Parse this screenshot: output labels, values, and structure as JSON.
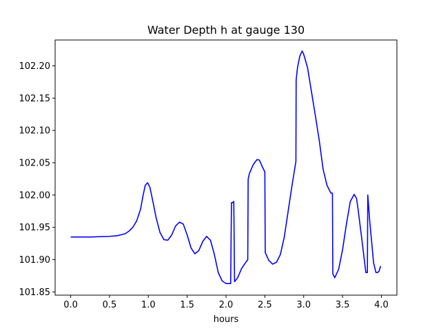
{
  "chart_data": {
    "type": "line",
    "title": "Water Depth h at gauge 130",
    "xlabel": "hours",
    "ylabel": "",
    "xlim": [
      -0.2,
      4.2
    ],
    "ylim": [
      101.845,
      102.24
    ],
    "xticks": [
      0.0,
      0.5,
      1.0,
      1.5,
      2.0,
      2.5,
      3.0,
      3.5,
      4.0
    ],
    "xtick_labels": [
      "0.0",
      "0.5",
      "1.0",
      "1.5",
      "2.0",
      "2.5",
      "3.0",
      "3.5",
      "4.0"
    ],
    "yticks": [
      101.85,
      101.9,
      101.95,
      102.0,
      102.05,
      102.1,
      102.15,
      102.2
    ],
    "ytick_labels": [
      "101.85",
      "101.90",
      "101.95",
      "102.00",
      "102.05",
      "102.10",
      "102.15",
      "102.20"
    ],
    "grid": false,
    "legend": "none",
    "series": [
      {
        "color": "#0000ff",
        "x": [
          0.0,
          0.25,
          0.5,
          0.6,
          0.7,
          0.75,
          0.8,
          0.85,
          0.9,
          0.93,
          0.96,
          0.99,
          1.02,
          1.05,
          1.1,
          1.15,
          1.2,
          1.25,
          1.3,
          1.35,
          1.4,
          1.45,
          1.5,
          1.55,
          1.6,
          1.65,
          1.7,
          1.75,
          1.8,
          1.85,
          1.9,
          1.95,
          2.0,
          2.03,
          2.06,
          2.07,
          2.08,
          2.1,
          2.11,
          2.15,
          2.2,
          2.25,
          2.28,
          2.285,
          2.3,
          2.35,
          2.4,
          2.43,
          2.47,
          2.5,
          2.505,
          2.55,
          2.6,
          2.65,
          2.7,
          2.75,
          2.8,
          2.85,
          2.9,
          2.903,
          2.92,
          2.95,
          2.98,
          3.0,
          3.05,
          3.1,
          3.15,
          3.2,
          3.25,
          3.3,
          3.35,
          3.37,
          3.375,
          3.4,
          3.45,
          3.5,
          3.55,
          3.6,
          3.65,
          3.68,
          3.7,
          3.75,
          3.8,
          3.82,
          3.825,
          3.85,
          3.9,
          3.93,
          3.95,
          3.97,
          3.99
        ],
        "values": [
          101.935,
          101.935,
          101.936,
          101.937,
          101.94,
          101.944,
          101.95,
          101.96,
          101.978,
          101.998,
          102.015,
          102.019,
          102.012,
          101.995,
          101.965,
          101.942,
          101.931,
          101.93,
          101.938,
          101.952,
          101.958,
          101.955,
          101.938,
          101.918,
          101.909,
          101.914,
          101.928,
          101.936,
          101.93,
          101.908,
          101.88,
          101.867,
          101.863,
          101.863,
          101.863,
          101.988,
          101.988,
          101.99,
          101.866,
          101.872,
          101.886,
          101.895,
          101.9,
          102.024,
          102.033,
          102.047,
          102.055,
          102.054,
          102.043,
          102.036,
          101.911,
          101.899,
          101.893,
          101.896,
          101.908,
          101.935,
          101.975,
          102.015,
          102.052,
          102.178,
          102.197,
          102.215,
          102.223,
          102.218,
          102.197,
          102.16,
          102.123,
          102.085,
          102.04,
          102.015,
          102.003,
          102.003,
          101.878,
          101.872,
          101.885,
          101.915,
          101.955,
          101.99,
          102.001,
          101.995,
          101.978,
          101.93,
          101.88,
          101.88,
          102.0,
          101.96,
          101.895,
          101.88,
          101.88,
          101.882,
          101.89
        ]
      }
    ]
  }
}
